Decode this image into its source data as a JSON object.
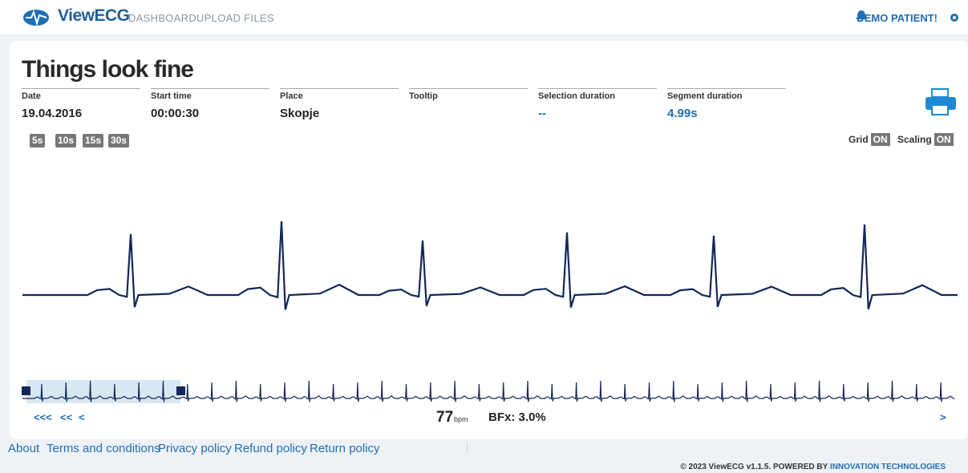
{
  "header": {
    "brand": "ViewECG",
    "nav": [
      "DASHBOARD",
      "UPLOAD FILES"
    ],
    "user": "DEMO PATIENT!"
  },
  "title": "Things look fine",
  "fields": [
    {
      "label": "Date",
      "value": "19.04.2016"
    },
    {
      "label": "Start time",
      "value": "00:00:30"
    },
    {
      "label": "Place",
      "value": "Skopje"
    },
    {
      "label": "Tooltip"
    },
    {
      "label": "Selection duration",
      "value": "--"
    },
    {
      "label": "Segment duration",
      "value": "4.99s"
    }
  ],
  "durations": [
    "5s",
    "10s",
    "15s",
    "30s"
  ],
  "toggles": [
    {
      "label": "Grid",
      "state": "ON"
    },
    {
      "label": "Scaling",
      "state": "ON"
    }
  ],
  "navigation": {
    "back": [
      "<<<",
      "<<",
      "<"
    ],
    "forward": ">"
  },
  "stats": {
    "heart_rate": "77",
    "heart_rate_unit": "bpm",
    "bfx": "BFx: 3.0%"
  },
  "footer": {
    "links": [
      "About",
      "Terms and conditions",
      "Privacy policy",
      "Refund policy",
      "Return policy"
    ],
    "copyright": "© 2023 ViewECG v1.1.5. POWERED BY",
    "company": "INNOVATION TECHNOLOGIES"
  }
}
